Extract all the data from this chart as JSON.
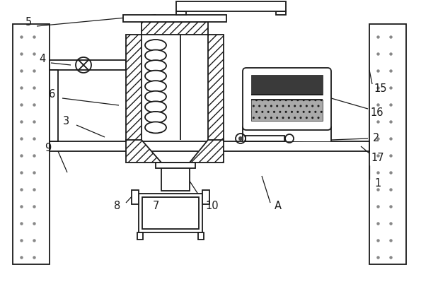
{
  "fig_width": 5.95,
  "fig_height": 4.09,
  "dpi": 100,
  "bg_color": "#ffffff",
  "line_color": "#1a1a1a"
}
